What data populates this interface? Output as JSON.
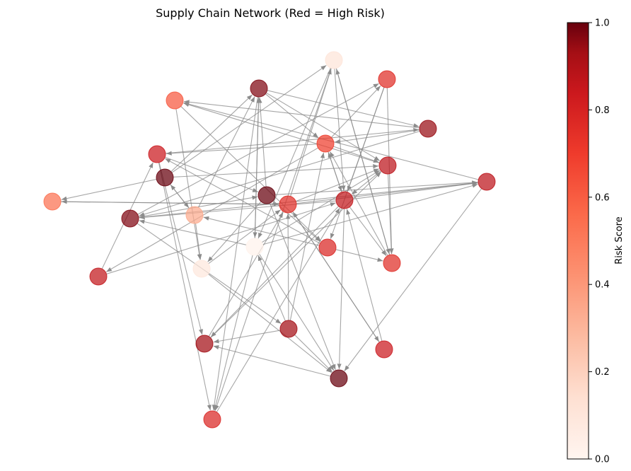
{
  "title": "Supply Chain Network (Red = High Risk)",
  "colorbar": {
    "label": "Risk Score",
    "min": 0.0,
    "max": 1.0,
    "ticks": [
      "0.0",
      "0.2",
      "0.4",
      "0.6",
      "0.8",
      "1.0"
    ],
    "colors": [
      "#fff5f0",
      "#fcbba1",
      "#fc9272",
      "#fb6a4a",
      "#ef3b2c",
      "#cb181d",
      "#99000d",
      "#67000d"
    ]
  },
  "edge_color": "#888888"
}
